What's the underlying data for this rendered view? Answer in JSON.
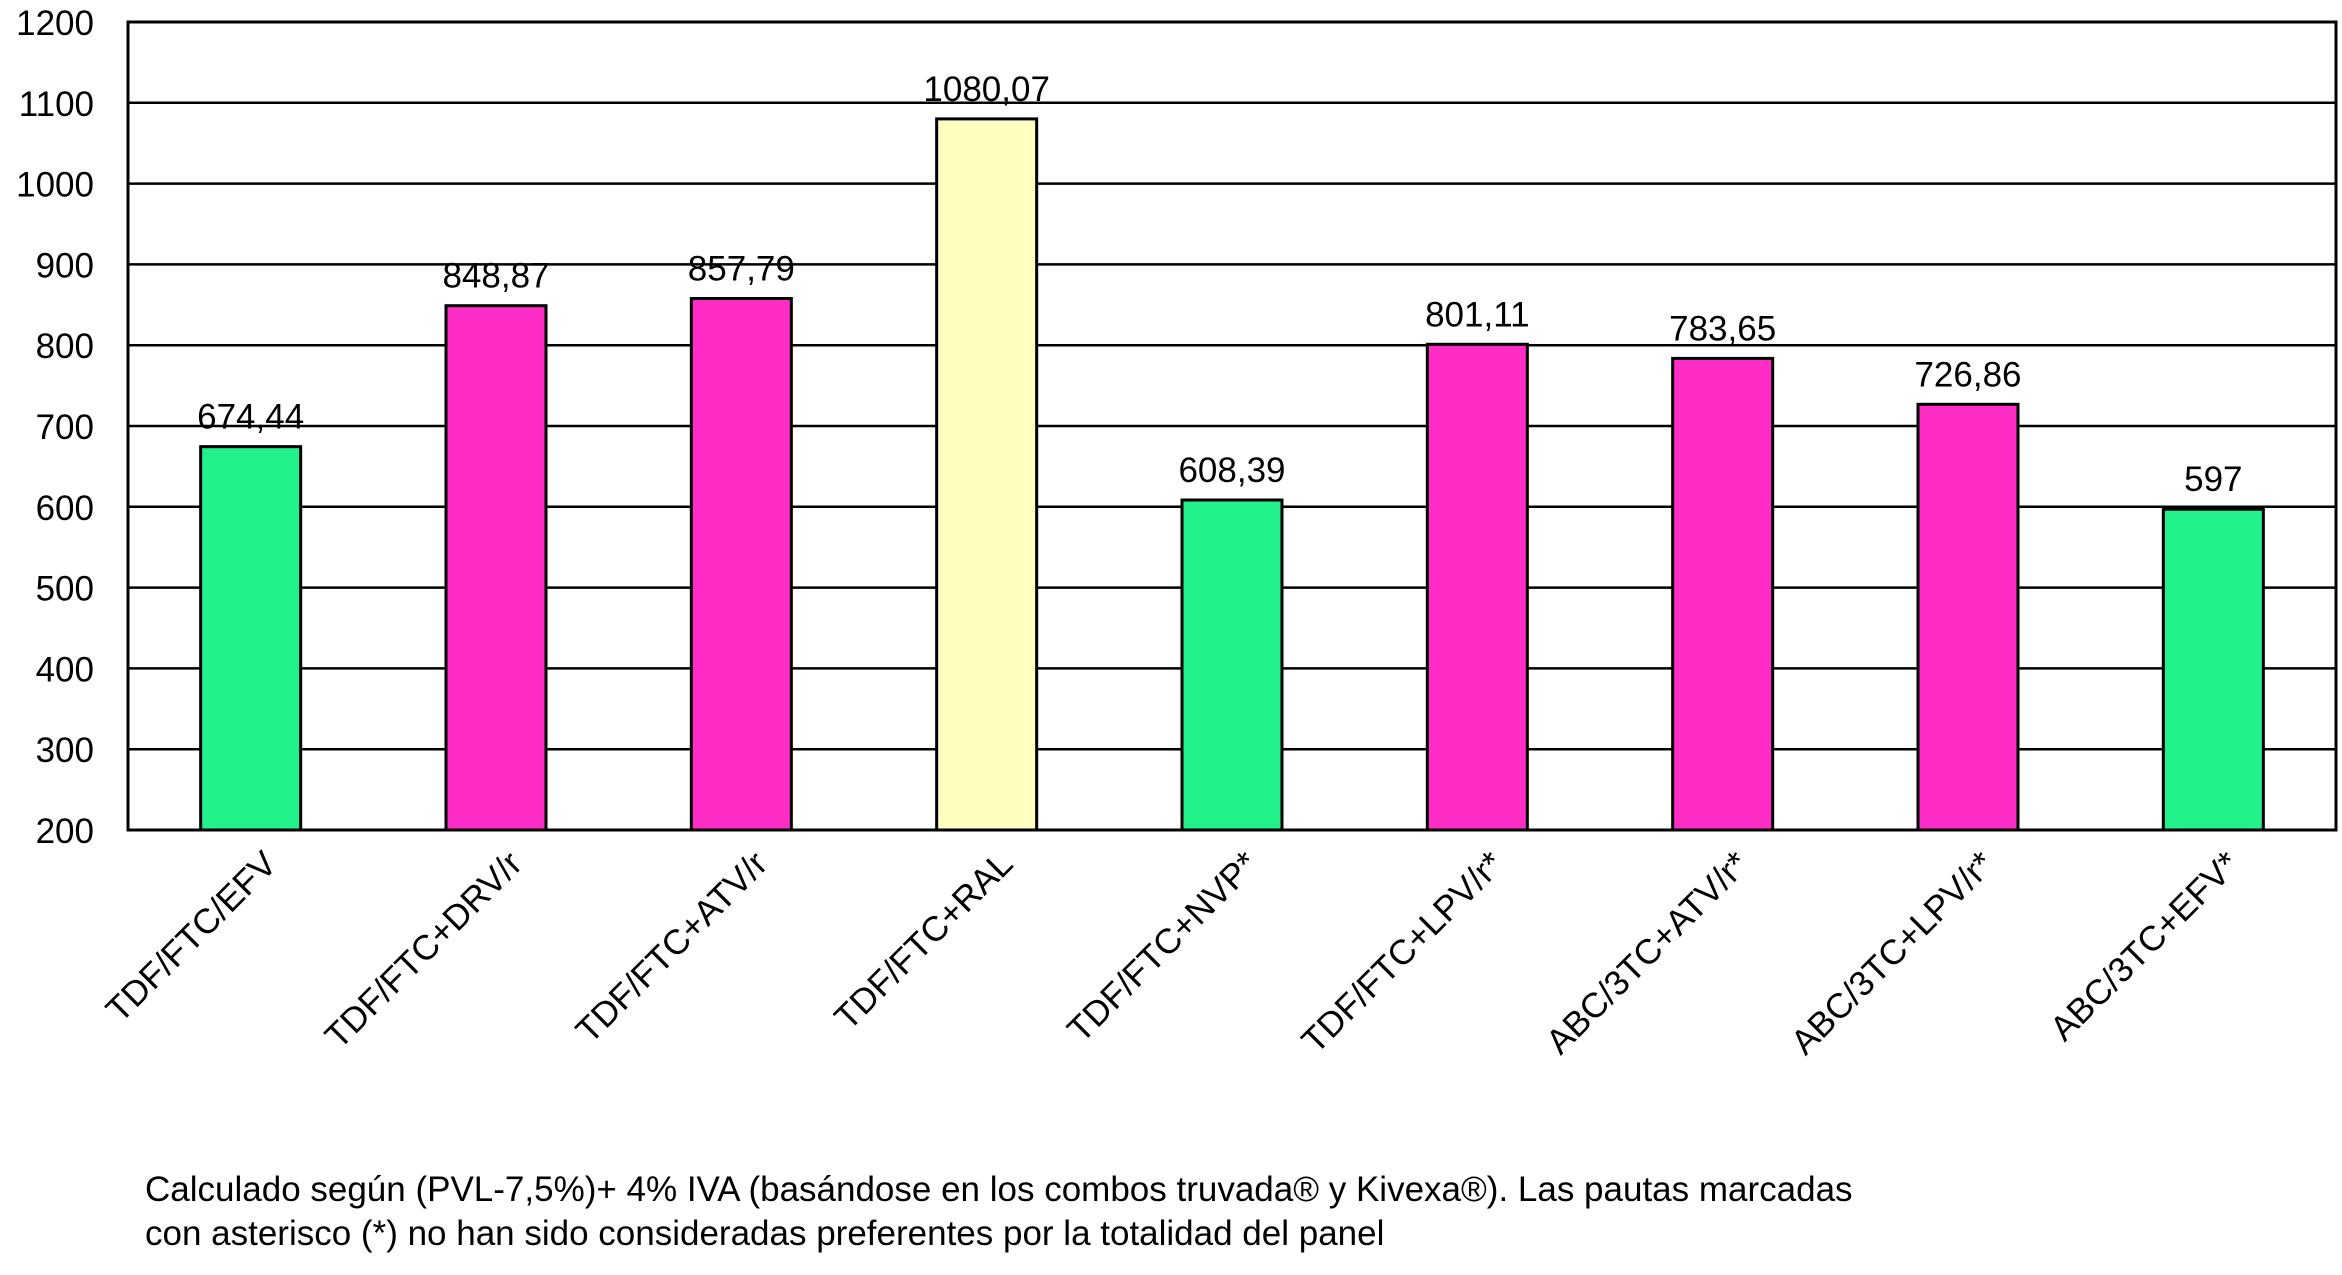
{
  "chart_data": {
    "type": "bar",
    "categories": [
      "TDF/FTC/EFV",
      "TDF/FTC+DRV/r",
      "TDF/FTC+ATV/r",
      "TDF/FTC+RAL",
      "TDF/FTC+NVP*",
      "TDF/FTC+LPV/r*",
      "ABC/3TC+ATV/r*",
      "ABC/3TC+LPV/r*",
      "ABC/3TC+EFV*"
    ],
    "values": [
      674.44,
      848.87,
      857.79,
      1080.07,
      608.39,
      801.11,
      783.65,
      726.86,
      597
    ],
    "value_labels": [
      "674,44",
      "848,87",
      "857,79",
      "1080,07",
      "608,39",
      "801,11",
      "783,65",
      "726,86",
      "597"
    ],
    "bar_colors": [
      "#22f08a",
      "#ff2dc6",
      "#ff2dc6",
      "#ffffc2",
      "#22f08a",
      "#ff2dc6",
      "#ff2dc6",
      "#ff2dc6",
      "#22f08a"
    ],
    "ylim": [
      200,
      1200
    ],
    "yticks": [
      200,
      300,
      400,
      500,
      600,
      700,
      800,
      900,
      1000,
      1100,
      1200
    ],
    "grid": true,
    "title": "",
    "xlabel": "",
    "ylabel": ""
  },
  "footnote": {
    "line1": "Calculado según (PVL-7,5%)+ 4% IVA (basándose en los combos truvada® y Kivexa®). Las pautas marcadas",
    "line2": "con asterisco (*) no han sido consideradas preferentes por la totalidad del panel"
  }
}
